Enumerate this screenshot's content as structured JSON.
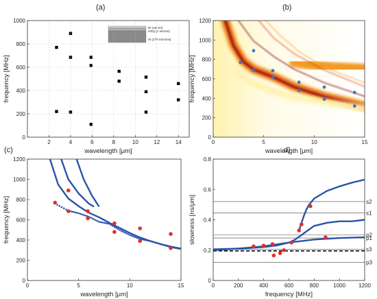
{
  "chart_data": [
    {
      "panel_label": "(a)",
      "type": "scatter",
      "xlabel": "wavelength  [μm]",
      "ylabel": "frequency [MHz]",
      "xlim": [
        0,
        15
      ],
      "ylim": [
        0,
        1000
      ],
      "xticks": [
        2,
        4,
        6,
        8,
        10,
        12,
        14
      ],
      "yticks": [
        0,
        200,
        400,
        600,
        800,
        1000
      ],
      "grid": true,
      "series": [
        {
          "marker": "square",
          "color": "#000000",
          "x": [
            2.7,
            2.7,
            4,
            4,
            4,
            5.9,
            5.9,
            5.9,
            8.5,
            8.5,
            11,
            11,
            11,
            14,
            14
          ],
          "y": [
            770,
            220,
            890,
            685,
            215,
            685,
            615,
            110,
            565,
            480,
            515,
            390,
            215,
            460,
            320
          ]
        }
      ],
      "inset": {
        "layers": [
          "Ni (18 nm)",
          "HSQ (1 micron)",
          "Si (270 microns)"
        ],
        "colors": [
          "#cfcfcf",
          "#b0b0b0",
          "#8a8a8a"
        ]
      }
    },
    {
      "panel_label": "(b)",
      "type": "heatmap",
      "xlabel": "wavelength  [μm]",
      "ylabel": "frequency [MHz]",
      "xlim": [
        0,
        15
      ],
      "ylim": [
        0,
        1200
      ],
      "xticks": [
        0,
        5,
        10,
        15
      ],
      "yticks": [
        0,
        200,
        400,
        600,
        800,
        1000,
        1200
      ],
      "colormap": [
        "#ffffff",
        "#fff3b0",
        "#f4a020",
        "#d63a14",
        "#7a0f12"
      ],
      "points": {
        "color": "#3a7bbf",
        "x": [
          2.7,
          4,
          4,
          5.9,
          5.9,
          8.5,
          8.5,
          11,
          11,
          14,
          14
        ],
        "y": [
          770,
          890,
          685,
          685,
          615,
          565,
          480,
          515,
          390,
          460,
          320
        ]
      }
    },
    {
      "panel_label": "(c)",
      "type": "line",
      "xlabel": "wavelength  [μm]",
      "ylabel": "frequency [MHz]",
      "xlim": [
        0,
        15
      ],
      "ylim": [
        0,
        1200
      ],
      "xticks": [
        0,
        5,
        10,
        15
      ],
      "yticks": [
        0,
        200,
        400,
        600,
        800,
        1000,
        1200
      ],
      "curves": [
        {
          "style": "solid",
          "color": "#2a52a8",
          "x": [
            2.2,
            3,
            4,
            5,
            6,
            7,
            8,
            9,
            10,
            11,
            12,
            13,
            14,
            15
          ],
          "y": [
            1200,
            950,
            810,
            735,
            670,
            625,
            570,
            520,
            470,
            425,
            390,
            360,
            335,
            315
          ]
        },
        {
          "style": "solid",
          "color": "#2a52a8",
          "x": [
            3.3,
            4,
            5,
            6,
            6.5
          ],
          "y": [
            1200,
            1000,
            860,
            760,
            730
          ]
        },
        {
          "style": "solid",
          "color": "#2a52a8",
          "x": [
            4.8,
            5.5,
            6.3,
            7
          ],
          "y": [
            1200,
            1000,
            840,
            730
          ]
        },
        {
          "style": "dotted",
          "color": "#2a52a8",
          "x": [
            2.7,
            4,
            5,
            6,
            7,
            8,
            9,
            10,
            11,
            12,
            13,
            14,
            15
          ],
          "y": [
            760,
            690,
            665,
            630,
            580,
            560,
            500,
            450,
            410,
            390,
            360,
            330,
            310
          ]
        }
      ],
      "points": {
        "color": "#e03030",
        "x": [
          2.7,
          4,
          4,
          5.9,
          5.9,
          8.5,
          8.5,
          11,
          11,
          14,
          14
        ],
        "y": [
          770,
          890,
          685,
          685,
          615,
          565,
          480,
          515,
          390,
          460,
          320
        ]
      }
    },
    {
      "panel_label": "d)",
      "type": "line",
      "xlabel": "frequency [MHz]",
      "ylabel": "slowness  [ns/μm]",
      "xlim": [
        0,
        1200
      ],
      "ylim": [
        0,
        0.8
      ],
      "xticks": [
        0,
        200,
        400,
        600,
        800,
        1000,
        1200
      ],
      "yticks": [
        0,
        0.2,
        0.4,
        0.6,
        0.8
      ],
      "hlines": [
        {
          "label": "s2",
          "y": 0.52
        },
        {
          "label": "s1",
          "y": 0.445
        },
        {
          "label": "p2",
          "y": 0.3
        },
        {
          "label": "p1",
          "y": 0.28
        },
        {
          "label": "s3",
          "y": 0.205
        },
        {
          "label": "p3",
          "y": 0.12
        }
      ],
      "dashed_line": {
        "y": 0.195,
        "color": "#000000"
      },
      "curves": [
        {
          "style": "solid",
          "color": "#2a52a8",
          "x": [
            0,
            200,
            400,
            500,
            600,
            650,
            700,
            750,
            800,
            900,
            1000,
            1100,
            1200
          ],
          "y": [
            0.205,
            0.21,
            0.22,
            0.23,
            0.25,
            0.27,
            0.3,
            0.33,
            0.36,
            0.38,
            0.39,
            0.39,
            0.4
          ]
        },
        {
          "style": "solid",
          "color": "#2a52a8",
          "x": [
            680,
            700,
            720,
            740,
            760,
            800,
            900,
            1000,
            1100,
            1200
          ],
          "y": [
            0.33,
            0.38,
            0.43,
            0.47,
            0.5,
            0.54,
            0.59,
            0.62,
            0.645,
            0.665
          ]
        },
        {
          "style": "solid",
          "color": "#2a52a8",
          "x": [
            0,
            200,
            400,
            600,
            800,
            1000,
            1200
          ],
          "y": [
            0.2,
            0.21,
            0.225,
            0.25,
            0.27,
            0.28,
            0.285
          ]
        }
      ],
      "points": {
        "color": "#e03030",
        "x": [
          320,
          400,
          470,
          480,
          530,
          560,
          620,
          680,
          700,
          770,
          890
        ],
        "y": [
          0.225,
          0.23,
          0.24,
          0.165,
          0.18,
          0.2,
          0.25,
          0.33,
          0.37,
          0.49,
          0.285
        ]
      }
    }
  ]
}
